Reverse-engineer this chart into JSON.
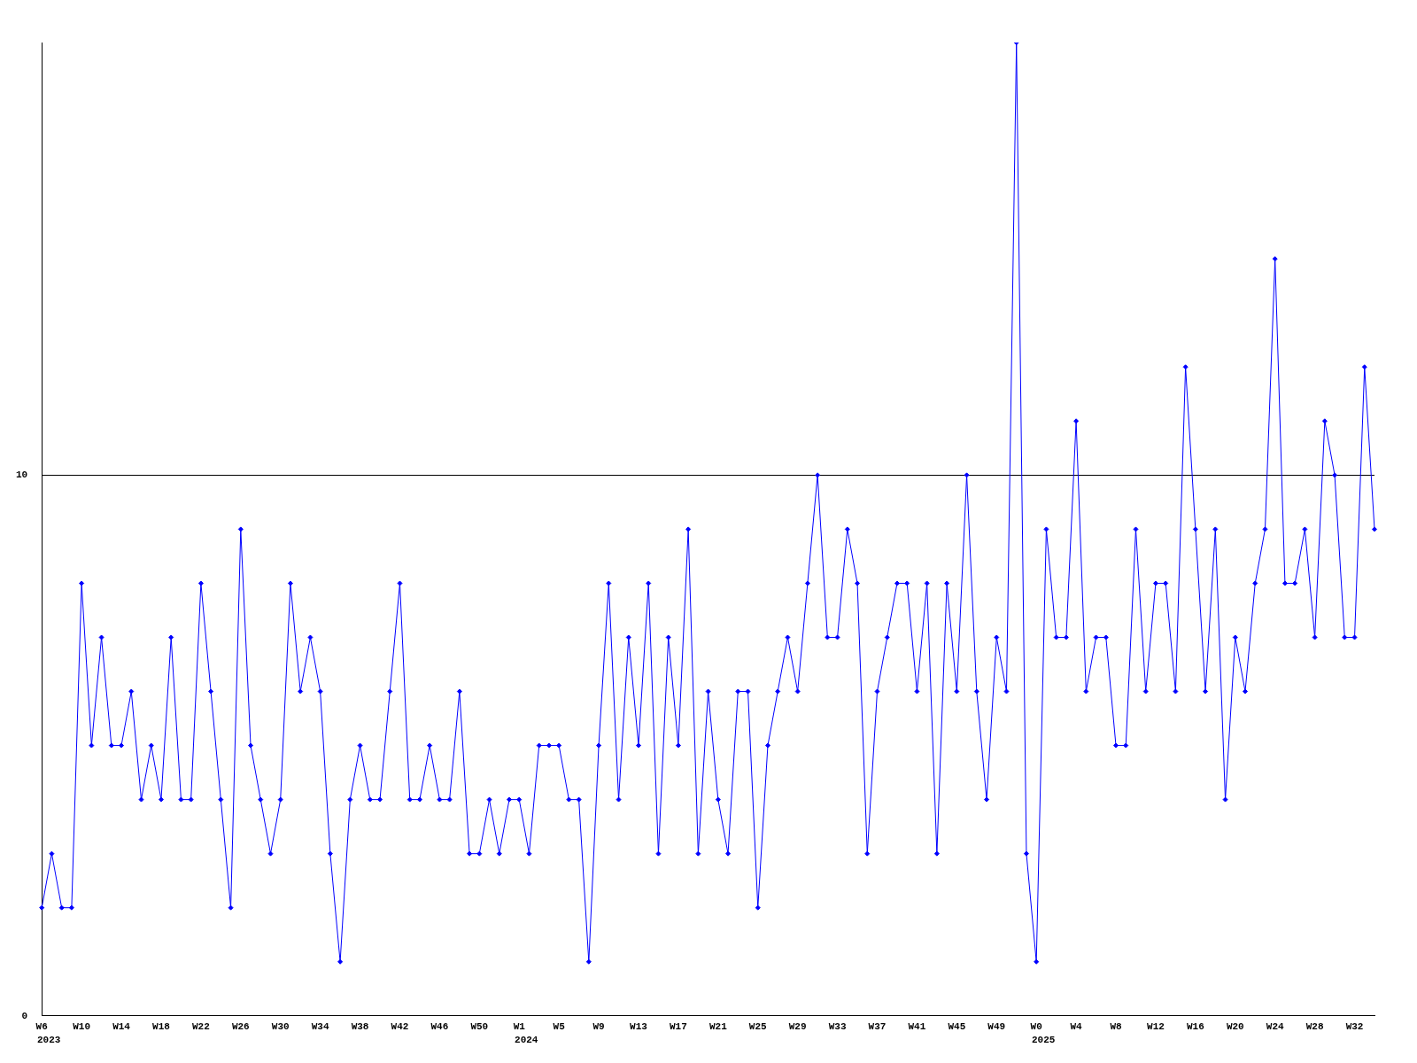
{
  "chart_data": {
    "type": "line",
    "categories": [
      "W6",
      null,
      null,
      null,
      "W10",
      null,
      null,
      null,
      "W14",
      null,
      null,
      null,
      "W18",
      null,
      null,
      null,
      "W22",
      null,
      null,
      null,
      "W26",
      null,
      null,
      null,
      "W30",
      null,
      null,
      null,
      "W34",
      null,
      null,
      null,
      "W38",
      null,
      null,
      null,
      "W42",
      null,
      null,
      null,
      "W46",
      null,
      null,
      null,
      "W50",
      null,
      null,
      null,
      "W1",
      null,
      null,
      null,
      "W5",
      null,
      null,
      null,
      "W9",
      null,
      null,
      null,
      "W13",
      null,
      null,
      null,
      "W17",
      null,
      null,
      null,
      "W21",
      null,
      null,
      null,
      "W25",
      null,
      null,
      null,
      "W29",
      null,
      null,
      null,
      "W33",
      null,
      null,
      null,
      "W37",
      null,
      null,
      null,
      "W41",
      null,
      null,
      null,
      "W45",
      null,
      null,
      null,
      "W49",
      null,
      null,
      null,
      "W0",
      null,
      null,
      null,
      "W4",
      null,
      null,
      null,
      "W8",
      null,
      null,
      null,
      "W12",
      null,
      null,
      null,
      "W16",
      null,
      null,
      null,
      "W20",
      null,
      null,
      null,
      "W24",
      null,
      null,
      null,
      "W28",
      null,
      null,
      null,
      "W32",
      null,
      null
    ],
    "series": [
      {
        "color": "#0000ff",
        "values": [
          2,
          3,
          2,
          2,
          8,
          5,
          7,
          5,
          5,
          6,
          4,
          5,
          4,
          7,
          4,
          4,
          8,
          6,
          4,
          2,
          9,
          5,
          4,
          3,
          4,
          8,
          6,
          7,
          6,
          3,
          1,
          4,
          5,
          4,
          4,
          6,
          8,
          4,
          4,
          5,
          4,
          4,
          6,
          3,
          3,
          4,
          3,
          4,
          4,
          3,
          5,
          5,
          5,
          4,
          4,
          1,
          5,
          8,
          4,
          7,
          5,
          8,
          3,
          7,
          5,
          9,
          3,
          6,
          4,
          3,
          6,
          6,
          2,
          5,
          6,
          7,
          6,
          8,
          10,
          7,
          7,
          9,
          8,
          3,
          6,
          7,
          8,
          8,
          6,
          8,
          3,
          8,
          6,
          10,
          6,
          4,
          7,
          6,
          18,
          3,
          1,
          9,
          7,
          7,
          11,
          6,
          7,
          7,
          5,
          5,
          9,
          6,
          8,
          8,
          6,
          12,
          9,
          6,
          9,
          4,
          7,
          6,
          8,
          9,
          14,
          8,
          8,
          9,
          7,
          11,
          10,
          7,
          7,
          12,
          9
        ]
      }
    ],
    "ylim": [
      0,
      18
    ],
    "yticks": [
      0,
      10
    ],
    "grid": "y",
    "legend": false,
    "marker": "diamond",
    "line_style": "solid",
    "annotations": [
      "2023",
      "2024",
      "2025"
    ]
  }
}
